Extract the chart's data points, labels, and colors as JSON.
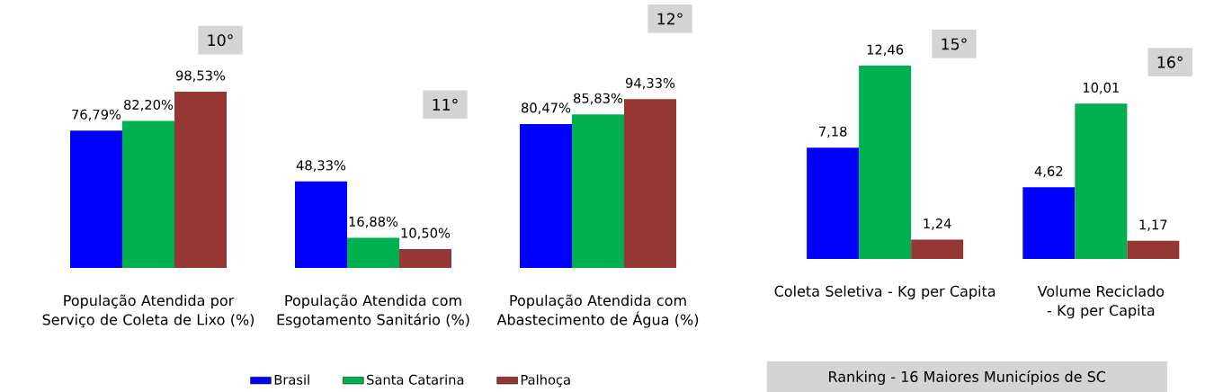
{
  "chart_data": [
    {
      "type": "bar",
      "categories": [
        "População Atendida por Serviço de Coleta de Lixo (%)",
        "População Atendida com Esgotamento Sanitário (%)",
        "População Atendida com Abastecimento de Água (%)"
      ],
      "series": [
        {
          "name": "Brasil",
          "color": "#0000ff",
          "values": [
            76.79,
            48.33,
            80.47
          ],
          "value_labels": [
            "76,79%",
            "48,33%",
            "80,47%"
          ]
        },
        {
          "name": "Santa Catarina",
          "color": "#00b050",
          "values": [
            82.2,
            16.88,
            85.83
          ],
          "value_labels": [
            "82,20%",
            "16,88%",
            "85,83%"
          ]
        },
        {
          "name": "Palhoça",
          "color": "#953735",
          "values": [
            98.53,
            10.5,
            94.33
          ],
          "value_labels": [
            "98,53%",
            "10,50%",
            "94,33%"
          ]
        }
      ],
      "annotations": [
        "10°",
        "11°",
        "12°"
      ],
      "legend": "bottom"
    },
    {
      "type": "bar",
      "categories": [
        "Coleta Seletiva - Kg per Capita",
        "Volume Reciclado - Kg per Capita"
      ],
      "series": [
        {
          "color": "#0000ff",
          "values": [
            7.18,
            4.62
          ],
          "value_labels": [
            "7,18",
            "4,62"
          ]
        },
        {
          "color": "#00b050",
          "values": [
            12.46,
            10.01
          ],
          "value_labels": [
            "12,46",
            "10,01"
          ]
        },
        {
          "color": "#953735",
          "values": [
            1.24,
            1.17
          ],
          "value_labels": [
            "1,24",
            "1,17"
          ]
        }
      ],
      "annotations": [
        "15°",
        "16°",
        "Ranking - 16 Maiores Municípios de SC"
      ]
    }
  ]
}
